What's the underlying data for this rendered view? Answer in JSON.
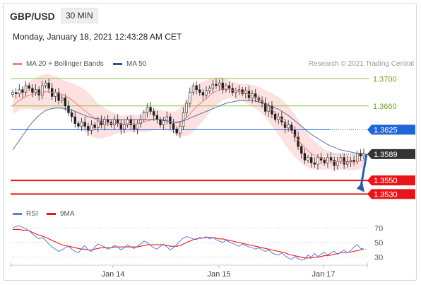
{
  "header": {
    "symbol": "GBP/USD",
    "timeframe": "30 MIN",
    "datetime": "Monday, January 18, 2021 12:43:28 AM CET",
    "credit": "Research © 2021 Trading Central"
  },
  "colors": {
    "ma20": "#f08080",
    "bollinger_fill": "#fcdada",
    "ma50": "#2f4f8f",
    "support": "#e8141a",
    "resistance_blue": "#2066d6",
    "green_level": "#8cc63f",
    "last_price": "#333333",
    "arrow": "#2b5ea8",
    "rsi": "#5b7fd6",
    "rsi_ma": "#e8141a"
  },
  "chart_data": [
    {
      "type": "candlestick",
      "legend": [
        {
          "name": "MA 20 + Bollinger Bands",
          "color": "#f08080"
        },
        {
          "name": "MA 50",
          "color": "#2f4f8f"
        }
      ],
      "x_ticks": [
        "Jan 14",
        "Jan 15",
        "Jan 17"
      ],
      "ylim": [
        1.3522,
        1.3712
      ],
      "levels": [
        {
          "value": 1.37,
          "label": "1.3700",
          "kind": "green"
        },
        {
          "value": 1.366,
          "label": "1.3660",
          "kind": "green"
        },
        {
          "value": 1.3625,
          "label": "1.3625",
          "kind": "blue"
        },
        {
          "value": 1.3589,
          "label": "1.3589",
          "kind": "last"
        },
        {
          "value": 1.355,
          "label": "1.3550",
          "kind": "red"
        },
        {
          "value": 1.353,
          "label": "1.3530",
          "kind": "red"
        }
      ],
      "closes": [
        1.368,
        1.3678,
        1.3684,
        1.368,
        1.369,
        1.3686,
        1.368,
        1.3684,
        1.3676,
        1.369,
        1.3694,
        1.3686,
        1.3674,
        1.368,
        1.3668,
        1.3672,
        1.366,
        1.365,
        1.3644,
        1.3634,
        1.363,
        1.3636,
        1.363,
        1.3624,
        1.3632,
        1.3628,
        1.3638,
        1.3632,
        1.364,
        1.3636,
        1.3632,
        1.364,
        1.3634,
        1.3626,
        1.3632,
        1.364,
        1.3632,
        1.3626,
        1.3634,
        1.364,
        1.365,
        1.3658,
        1.3652,
        1.3646,
        1.364,
        1.3632,
        1.3638,
        1.3644,
        1.3634,
        1.3626,
        1.362,
        1.363,
        1.365,
        1.3664,
        1.368,
        1.369,
        1.3684,
        1.368,
        1.3676,
        1.3682,
        1.3686,
        1.3692,
        1.369,
        1.3694,
        1.3684,
        1.369,
        1.3686,
        1.368,
        1.3682,
        1.3684,
        1.3678,
        1.3682,
        1.3672,
        1.3678,
        1.3672,
        1.3668,
        1.3664,
        1.3652,
        1.366,
        1.3648,
        1.364,
        1.3644,
        1.3636,
        1.3628,
        1.3632,
        1.3624,
        1.3614,
        1.36,
        1.359,
        1.358,
        1.3584,
        1.3576,
        1.3574,
        1.3584,
        1.358,
        1.3576,
        1.3584,
        1.358,
        1.3572,
        1.3578,
        1.3584,
        1.3574,
        1.3578,
        1.358,
        1.3578,
        1.359,
        1.3586,
        1.3589
      ],
      "ma20": [
        1.366,
        1.3664,
        1.3668,
        1.3671,
        1.3674,
        1.3676,
        1.3677,
        1.3678,
        1.3679,
        1.368,
        1.3681,
        1.3681,
        1.368,
        1.368,
        1.3679,
        1.3677,
        1.3675,
        1.3672,
        1.3669,
        1.3665,
        1.3661,
        1.3657,
        1.3653,
        1.3649,
        1.3645,
        1.3641,
        1.3638,
        1.3636,
        1.3635,
        1.3634,
        1.3634,
        1.3634,
        1.3634,
        1.3633,
        1.3633,
        1.3634,
        1.3634,
        1.3634,
        1.3634,
        1.3635,
        1.3636,
        1.3638,
        1.3639,
        1.364,
        1.364,
        1.364,
        1.3639,
        1.3638,
        1.3637,
        1.3636,
        1.3635,
        1.3636,
        1.3639,
        1.3643,
        1.3648,
        1.3654,
        1.3659,
        1.3663,
        1.3667,
        1.3671,
        1.3675,
        1.3679,
        1.3682,
        1.3684,
        1.3685,
        1.3685,
        1.3684,
        1.3683,
        1.3682,
        1.3681,
        1.368,
        1.3679,
        1.3677,
        1.3675,
        1.3673,
        1.367,
        1.3667,
        1.3663,
        1.3659,
        1.3655,
        1.365,
        1.3645,
        1.364,
        1.3634,
        1.3628,
        1.3622,
        1.3616,
        1.361,
        1.3604,
        1.3599,
        1.3594,
        1.359,
        1.3587,
        1.3585,
        1.3583,
        1.3581,
        1.358,
        1.3579,
        1.3578,
        1.3578,
        1.3578,
        1.3577,
        1.3577,
        1.3577,
        1.3577,
        1.3578,
        1.3579,
        1.358
      ],
      "bb_width": [
        0.0012,
        0.0013,
        0.0014,
        0.0016,
        0.0018,
        0.002,
        0.0022,
        0.0024,
        0.0025,
        0.0026,
        0.0026,
        0.0026,
        0.0025,
        0.0024,
        0.0023,
        0.0022,
        0.0022,
        0.0023,
        0.0025,
        0.0027,
        0.0029,
        0.003,
        0.0031,
        0.0031,
        0.003,
        0.0028,
        0.0026,
        0.0024,
        0.0022,
        0.002,
        0.0018,
        0.0016,
        0.0014,
        0.0013,
        0.0013,
        0.0013,
        0.0013,
        0.0013,
        0.0013,
        0.0014,
        0.0015,
        0.0016,
        0.0016,
        0.0016,
        0.0015,
        0.0014,
        0.0014,
        0.0014,
        0.0015,
        0.0016,
        0.0018,
        0.0021,
        0.0024,
        0.0027,
        0.003,
        0.0032,
        0.0032,
        0.0031,
        0.0029,
        0.0027,
        0.0025,
        0.0023,
        0.0021,
        0.0019,
        0.0017,
        0.0015,
        0.0013,
        0.0012,
        0.0012,
        0.0012,
        0.0013,
        0.0014,
        0.0015,
        0.0016,
        0.0017,
        0.0018,
        0.0019,
        0.002,
        0.0022,
        0.0024,
        0.0026,
        0.0028,
        0.003,
        0.0031,
        0.0032,
        0.0032,
        0.0031,
        0.003,
        0.0029,
        0.0027,
        0.0025,
        0.0023,
        0.0021,
        0.0019,
        0.0017,
        0.0015,
        0.0014,
        0.0013,
        0.0012,
        0.0012,
        0.0012,
        0.0012,
        0.0012,
        0.0012,
        0.0012,
        0.0012,
        0.0012,
        0.0012
      ],
      "ma50": [
        1.3595,
        1.3602,
        1.3609,
        1.3616,
        1.3623,
        1.363,
        1.3636,
        1.3641,
        1.3646,
        1.365,
        1.3653,
        1.3655,
        1.3656,
        1.3657,
        1.3657,
        1.3657,
        1.3656,
        1.3655,
        1.3654,
        1.3652,
        1.365,
        1.3648,
        1.3646,
        1.3644,
        1.3643,
        1.3642,
        1.3641,
        1.3641,
        1.364,
        1.364,
        1.364,
        1.364,
        1.364,
        1.364,
        1.364,
        1.364,
        1.364,
        1.364,
        1.364,
        1.364,
        1.364,
        1.364,
        1.364,
        1.364,
        1.364,
        1.364,
        1.3639,
        1.3638,
        1.3637,
        1.3636,
        1.3636,
        1.3637,
        1.3638,
        1.364,
        1.3642,
        1.3644,
        1.3646,
        1.3648,
        1.365,
        1.3652,
        1.3654,
        1.3656,
        1.3658,
        1.366,
        1.3662,
        1.3664,
        1.3665,
        1.3666,
        1.3667,
        1.3668,
        1.3668,
        1.3668,
        1.3668,
        1.3668,
        1.3667,
        1.3666,
        1.3665,
        1.3663,
        1.3661,
        1.3659,
        1.3657,
        1.3655,
        1.3652,
        1.3649,
        1.3646,
        1.3642,
        1.3638,
        1.3634,
        1.363,
        1.3626,
        1.3622,
        1.3618,
        1.3615,
        1.3612,
        1.3609,
        1.3606,
        1.3603,
        1.3601,
        1.3599,
        1.3597,
        1.3595,
        1.3594,
        1.3593,
        1.3592,
        1.3591,
        1.359,
        1.3589,
        1.3589
      ]
    },
    {
      "type": "line",
      "legend": [
        {
          "name": "RSI",
          "color": "#5b7fd6"
        },
        {
          "name": "9MA",
          "color": "#e8141a"
        }
      ],
      "ylim": [
        22,
        78
      ],
      "levels": [
        {
          "value": 70,
          "label": "70"
        },
        {
          "value": 50,
          "label": "50"
        },
        {
          "value": 30,
          "label": "30"
        }
      ],
      "rsi": [
        70,
        72,
        73,
        71,
        69,
        66,
        62,
        58,
        55,
        57,
        53,
        48,
        44,
        41,
        38,
        40,
        43,
        45,
        41,
        38,
        36,
        42,
        46,
        40,
        38,
        44,
        48,
        46,
        44,
        41,
        43,
        46,
        44,
        40,
        43,
        47,
        44,
        42,
        45,
        48,
        52,
        50,
        46,
        43,
        41,
        45,
        48,
        44,
        40,
        43,
        47,
        52,
        56,
        58,
        57,
        55,
        54,
        57,
        56,
        58,
        55,
        57,
        54,
        52,
        50,
        53,
        51,
        49,
        47,
        45,
        48,
        46,
        44,
        43,
        41,
        43,
        40,
        38,
        40,
        36,
        34,
        33,
        36,
        32,
        29,
        27,
        31,
        28,
        26,
        27,
        33,
        30,
        35,
        31,
        34,
        37,
        33,
        36,
        38,
        34,
        37,
        40,
        36,
        39,
        44,
        47,
        42,
        41
      ],
      "rsi_ma": [
        68,
        68,
        68,
        67,
        67,
        66,
        64,
        62,
        60,
        59,
        57,
        55,
        53,
        51,
        49,
        47,
        46,
        45,
        44,
        43,
        42,
        41,
        41,
        40,
        40,
        41,
        42,
        43,
        43,
        43,
        43,
        44,
        44,
        44,
        44,
        44,
        44,
        44,
        44,
        45,
        46,
        47,
        47,
        47,
        47,
        47,
        47,
        46,
        45,
        45,
        45,
        46,
        48,
        50,
        52,
        54,
        55,
        56,
        56,
        57,
        57,
        57,
        56,
        55,
        55,
        54,
        53,
        52,
        51,
        50,
        49,
        48,
        47,
        46,
        45,
        44,
        43,
        42,
        41,
        40,
        39,
        38,
        37,
        36,
        34,
        33,
        32,
        31,
        30,
        29,
        29,
        29,
        30,
        30,
        31,
        32,
        32,
        33,
        34,
        35,
        36,
        36,
        37,
        37,
        38,
        39,
        40,
        41
      ]
    }
  ]
}
